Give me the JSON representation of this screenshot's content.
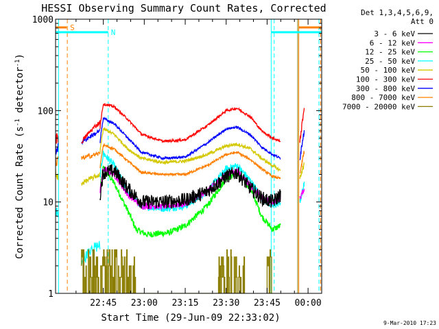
{
  "chart_data": {
    "type": "line",
    "title": "HESSI Observing Summary Count Rates, Corrected",
    "xlabel": "Start Time (29-Jun-09 22:33:02)",
    "ylabel_main": "Corrected Count Rate (s",
    "ylabel_sup1": "-1",
    "ylabel_mid": " detector",
    "ylabel_sup2": "-1",
    "ylabel_end": ")",
    "yscale": "log",
    "ylim": [
      1,
      1000
    ],
    "yticks": [
      {
        "v": 1,
        "label": "1"
      },
      {
        "v": 10,
        "label": "10"
      },
      {
        "v": 100,
        "label": "100"
      },
      {
        "v": 1000,
        "label": "1000"
      }
    ],
    "xlim_minutes": [
      -17.5,
      80
    ],
    "xticks": [
      {
        "m": 0,
        "label": "22:45"
      },
      {
        "m": 15,
        "label": "23:00"
      },
      {
        "m": 30,
        "label": "23:15"
      },
      {
        "m": 45,
        "label": "23:30"
      },
      {
        "m": 60,
        "label": "23:45"
      },
      {
        "m": 75,
        "label": "00:00"
      }
    ],
    "legend_header": [
      "Det 1,3,4,5,6,9,",
      "Att 0"
    ],
    "legend_position": "right",
    "series": [
      {
        "name": "3 - 6 keV",
        "color": "#000000"
      },
      {
        "name": "6 - 12 keV",
        "color": "#ff00ff"
      },
      {
        "name": "12 - 25 keV",
        "color": "#00ff00"
      },
      {
        "name": "25 - 50 keV",
        "color": "#00ffff"
      },
      {
        "name": "50 - 100 keV",
        "color": "#d4c800"
      },
      {
        "name": "100 - 300 keV",
        "color": "#ff0000"
      },
      {
        "name": "300 - 800 keV",
        "color": "#0000ff"
      },
      {
        "name": "800 - 7000 keV",
        "color": "#ff8000"
      },
      {
        "name": "7000 - 20000 keV",
        "color": "#8b7d00"
      }
    ],
    "profiles": [
      {
        "series": "3 - 6 keV",
        "points": [
          [
            0,
            21
          ],
          [
            4,
            22
          ],
          [
            9,
            14
          ],
          [
            14,
            10
          ],
          [
            22,
            10
          ],
          [
            30,
            10.5
          ],
          [
            38,
            13
          ],
          [
            45,
            19
          ],
          [
            49,
            21
          ],
          [
            54,
            14
          ],
          [
            58,
            11
          ],
          [
            62,
            10
          ],
          [
            65,
            12
          ]
        ],
        "noise": 0.18
      },
      {
        "series": "6 - 12 keV",
        "points": [
          [
            0,
            23
          ],
          [
            4,
            20
          ],
          [
            9,
            12
          ],
          [
            14,
            9
          ],
          [
            22,
            9
          ],
          [
            30,
            9.5
          ],
          [
            38,
            13
          ],
          [
            45,
            20
          ],
          [
            49,
            22
          ],
          [
            54,
            15
          ],
          [
            58,
            11
          ],
          [
            62,
            10
          ],
          [
            65,
            11
          ]
        ],
        "noise": 0.08
      },
      {
        "series": "12 - 25 keV",
        "points": [
          [
            0,
            24
          ],
          [
            4,
            16
          ],
          [
            9,
            8
          ],
          [
            12,
            5
          ],
          [
            16,
            4.4
          ],
          [
            24,
            4.6
          ],
          [
            30,
            5.5
          ],
          [
            38,
            9
          ],
          [
            45,
            18
          ],
          [
            49,
            21
          ],
          [
            54,
            14
          ],
          [
            58,
            7
          ],
          [
            62,
            5
          ],
          [
            65,
            5.5
          ]
        ],
        "noise": 0.08
      },
      {
        "series": "25 - 50 keV",
        "points": [
          [
            0,
            34
          ],
          [
            4,
            25
          ],
          [
            9,
            13
          ],
          [
            14,
            9
          ],
          [
            22,
            8.5
          ],
          [
            30,
            9
          ],
          [
            38,
            13
          ],
          [
            45,
            23
          ],
          [
            49,
            25
          ],
          [
            54,
            17
          ],
          [
            58,
            11
          ],
          [
            62,
            9
          ],
          [
            65,
            10
          ]
        ],
        "noise": 0.09
      },
      {
        "series": "50 - 100 keV",
        "points": [
          [
            0,
            63
          ],
          [
            4,
            55
          ],
          [
            9,
            38
          ],
          [
            14,
            30
          ],
          [
            22,
            27
          ],
          [
            30,
            28
          ],
          [
            38,
            33
          ],
          [
            45,
            41
          ],
          [
            49,
            43
          ],
          [
            54,
            38
          ],
          [
            58,
            30
          ],
          [
            62,
            25
          ],
          [
            65,
            22
          ]
        ],
        "noise": 0.04
      },
      {
        "series": "100 - 300 keV",
        "points": [
          [
            0,
            118
          ],
          [
            4,
            110
          ],
          [
            9,
            80
          ],
          [
            14,
            55
          ],
          [
            22,
            46
          ],
          [
            30,
            48
          ],
          [
            38,
            68
          ],
          [
            45,
            100
          ],
          [
            49,
            106
          ],
          [
            54,
            85
          ],
          [
            58,
            60
          ],
          [
            62,
            50
          ],
          [
            65,
            46
          ]
        ],
        "noise": 0.03
      },
      {
        "series": "300 - 800 keV",
        "points": [
          [
            0,
            82
          ],
          [
            4,
            72
          ],
          [
            9,
            50
          ],
          [
            14,
            35
          ],
          [
            22,
            30
          ],
          [
            30,
            31
          ],
          [
            38,
            44
          ],
          [
            45,
            63
          ],
          [
            49,
            66
          ],
          [
            54,
            54
          ],
          [
            58,
            40
          ],
          [
            62,
            33
          ],
          [
            65,
            30
          ]
        ],
        "noise": 0.03
      },
      {
        "series": "800 - 7000 keV",
        "points": [
          [
            0,
            42
          ],
          [
            4,
            38
          ],
          [
            9,
            28
          ],
          [
            14,
            21
          ],
          [
            22,
            20
          ],
          [
            30,
            20
          ],
          [
            38,
            25
          ],
          [
            45,
            33
          ],
          [
            49,
            35
          ],
          [
            54,
            29
          ],
          [
            58,
            23
          ],
          [
            62,
            19
          ],
          [
            65,
            18
          ]
        ],
        "noise": 0.03
      }
    ],
    "flags": [
      {
        "label": "S",
        "color": "#ff8000"
      },
      {
        "label": "N",
        "color": "#00ffff"
      }
    ],
    "footer_date": "9-Mar-2010 17:23"
  }
}
